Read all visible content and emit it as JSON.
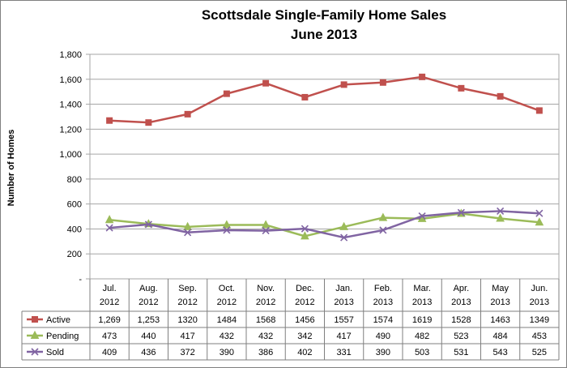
{
  "chart_data": {
    "type": "line",
    "title": [
      "Scottsdale Single-Family Home Sales",
      "June 2013"
    ],
    "ylabel": "Number of Homes",
    "xlabel": "",
    "ylim": [
      0,
      1800
    ],
    "yticks": [
      0,
      200,
      400,
      600,
      800,
      1000,
      1200,
      1400,
      1600,
      1800
    ],
    "yticklabels": [
      "-",
      "200",
      "400",
      "600",
      "800",
      "1,000",
      "1,200",
      "1,400",
      "1,600",
      "1,800"
    ],
    "grid": true,
    "legend_position": "data-table",
    "categories": [
      [
        "Jul.",
        "2012"
      ],
      [
        "Aug.",
        "2012"
      ],
      [
        "Sep.",
        "2012"
      ],
      [
        "Oct.",
        "2012"
      ],
      [
        "Nov.",
        "2012"
      ],
      [
        "Dec.",
        "2012"
      ],
      [
        "Jan.",
        "2013"
      ],
      [
        "Feb.",
        "2013"
      ],
      [
        "Mar.",
        "2013"
      ],
      [
        "Apr.",
        "2013"
      ],
      [
        "May",
        "2013"
      ],
      [
        "Jun.",
        "2013"
      ]
    ],
    "series": [
      {
        "name": "Active",
        "color": "#C0504D",
        "marker": "square",
        "values": [
          1269,
          1253,
          1320,
          1484,
          1568,
          1456,
          1557,
          1574,
          1619,
          1528,
          1463,
          1349
        ],
        "labels": [
          "1,269",
          "1,253",
          "1320",
          "1484",
          "1568",
          "1456",
          "1557",
          "1574",
          "1619",
          "1528",
          "1463",
          "1349"
        ]
      },
      {
        "name": "Pending",
        "color": "#9BBB59",
        "marker": "triangle",
        "values": [
          473,
          440,
          417,
          432,
          432,
          342,
          417,
          490,
          482,
          523,
          484,
          453
        ],
        "labels": [
          "473",
          "440",
          "417",
          "432",
          "432",
          "342",
          "417",
          "490",
          "482",
          "523",
          "484",
          "453"
        ]
      },
      {
        "name": "Sold",
        "color": "#8064A2",
        "marker": "x",
        "values": [
          409,
          436,
          372,
          390,
          386,
          402,
          331,
          390,
          503,
          531,
          543,
          525
        ],
        "labels": [
          "409",
          "436",
          "372",
          "390",
          "386",
          "402",
          "331",
          "390",
          "503",
          "531",
          "543",
          "525"
        ]
      }
    ]
  }
}
